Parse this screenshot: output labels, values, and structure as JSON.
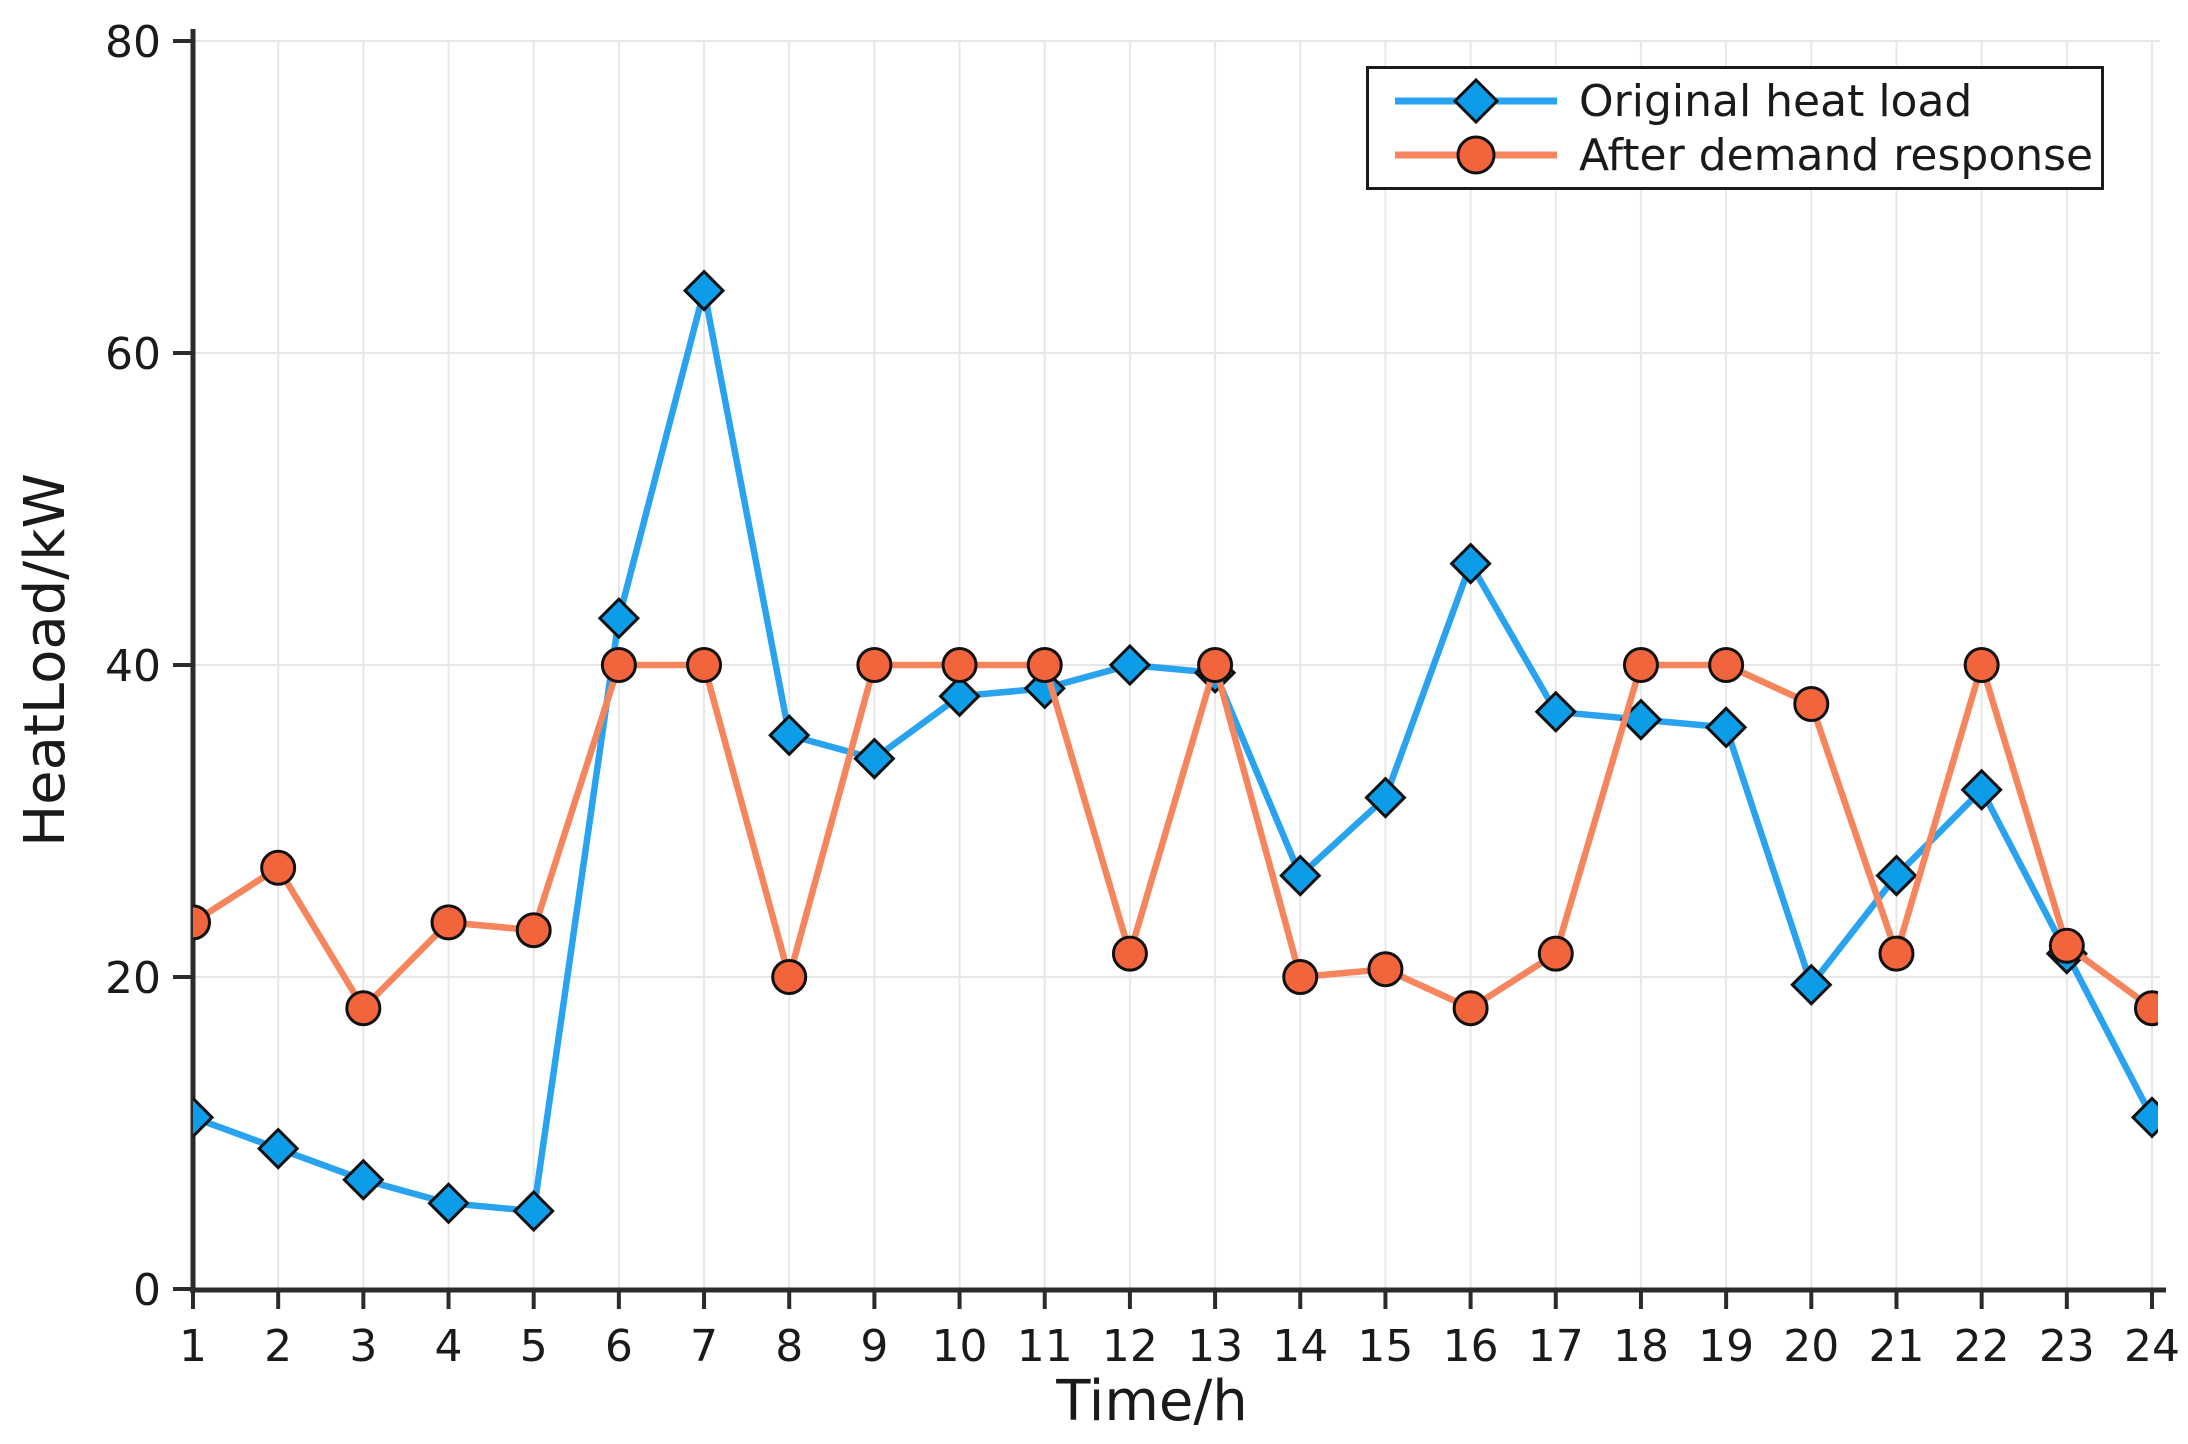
{
  "chart_data": {
    "type": "line",
    "x": [
      1,
      2,
      3,
      4,
      5,
      6,
      7,
      8,
      9,
      10,
      11,
      12,
      13,
      14,
      15,
      16,
      17,
      18,
      19,
      20,
      21,
      22,
      23,
      24
    ],
    "series": [
      {
        "name": "Original heat load",
        "marker": "diamond",
        "marker_color": "#0D9DE8",
        "line_color": "#29A3EF",
        "values": [
          11,
          9,
          7,
          5.5,
          5,
          43,
          64,
          35.5,
          34,
          38,
          38.5,
          40,
          39.5,
          26.5,
          31.5,
          46.5,
          37,
          36.5,
          36,
          19.5,
          26.5,
          32,
          21.5,
          11
        ]
      },
      {
        "name": "After demand response",
        "marker": "circle",
        "marker_color": "#F2653C",
        "line_color": "#F6845C",
        "values": [
          23.5,
          27,
          18,
          23.5,
          23,
          40,
          40,
          20,
          40,
          40,
          40,
          21.5,
          40,
          20,
          20.5,
          18,
          21.5,
          40,
          40,
          37.5,
          21.5,
          40,
          22,
          18
        ]
      }
    ],
    "xlabel": "Time/h",
    "ylabel": "HeatLoad/kW",
    "xlim": [
      1,
      24
    ],
    "ylim": [
      0,
      80
    ],
    "xticks": [
      1,
      2,
      3,
      4,
      5,
      6,
      7,
      8,
      9,
      10,
      11,
      12,
      13,
      14,
      15,
      16,
      17,
      18,
      19,
      20,
      21,
      22,
      23,
      24
    ],
    "yticks": [
      0,
      20,
      40,
      60,
      80
    ],
    "grid": true,
    "legend_position": "top-right",
    "colors": {
      "grid": "#E7E7E7",
      "axis": "#2B2B2B",
      "text": "#1A1A1A",
      "background": "#FFFFFF"
    }
  }
}
